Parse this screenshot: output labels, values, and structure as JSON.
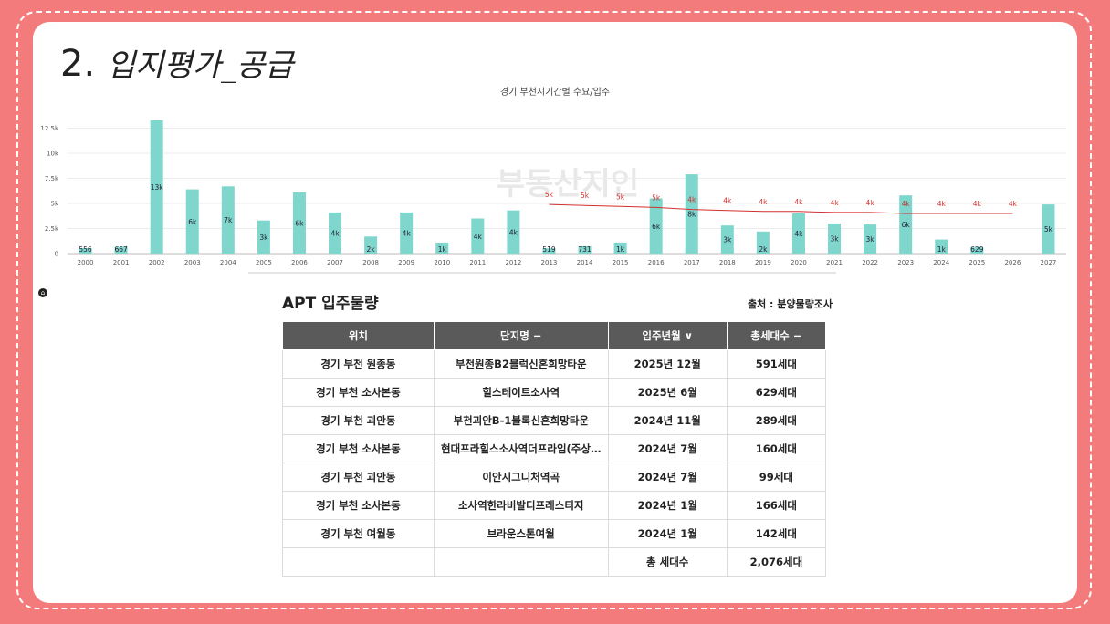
{
  "slide": {
    "number": "2.",
    "title": "입지평가_공급"
  },
  "watermark": "부동산지인",
  "chart_data": {
    "type": "bar",
    "title": "경기 부천시기간별 수요/입주",
    "categories": [
      "2000",
      "2001",
      "2002",
      "2003",
      "2004",
      "2005",
      "2006",
      "2007",
      "2008",
      "2009",
      "2010",
      "2011",
      "2012",
      "2013",
      "2014",
      "2015",
      "2016",
      "2017",
      "2018",
      "2019",
      "2020",
      "2021",
      "2022",
      "2023",
      "2024",
      "2025",
      "2026",
      "2027"
    ],
    "series": [
      {
        "values": [
          556,
          667,
          13300,
          6400,
          6700,
          3300,
          6100,
          4100,
          1700,
          4100,
          1100,
          3500,
          4300,
          519,
          731,
          1100,
          5500,
          7900,
          2800,
          2200,
          4000,
          3000,
          2900,
          5800,
          1400,
          629,
          0,
          4900
        ],
        "labels": [
          "556",
          "667",
          "13k",
          "6k",
          "7k",
          "3k",
          "6k",
          "4k",
          "2k",
          "4k",
          "1k",
          "4k",
          "4k",
          "519",
          "731",
          "1k",
          "6k",
          "8k",
          "3k",
          "2k",
          "4k",
          "3k",
          "3k",
          "6k",
          "1k",
          "629",
          "",
          "5k"
        ],
        "color": "#7fd6cc"
      },
      {
        "x": [
          "2013",
          "2014",
          "2015",
          "2016",
          "2017",
          "2018",
          "2019",
          "2020",
          "2021",
          "2022",
          "2023",
          "2024",
          "2025",
          "2026"
        ],
        "values": [
          4900,
          4800,
          4700,
          4600,
          4400,
          4300,
          4200,
          4200,
          4100,
          4100,
          4000,
          4000,
          4000,
          4000
        ],
        "labels": [
          "5k",
          "5k",
          "5k",
          "5k",
          "4k",
          "4k",
          "4k",
          "4k",
          "4k",
          "4k",
          "4k",
          "4k",
          "4k",
          "4k"
        ],
        "color": "#d32f2f"
      }
    ],
    "y_ticks": [
      "0",
      "2.5k",
      "5k",
      "7.5k",
      "10k",
      "12.5k"
    ],
    "ylim": [
      0,
      14000
    ],
    "grid": true
  },
  "apt": {
    "title": "APT 입주물량",
    "source": "출처 : 분양물량조사",
    "headers": [
      "위치",
      "단지명 −",
      "입주년월 ∨",
      "총세대수 −"
    ],
    "rows": [
      [
        "경기 부천 원종동",
        "부천원종B2블럭신혼희망타운",
        "2025년 12월",
        "591세대"
      ],
      [
        "경기 부천 소사본동",
        "힐스테이트소사역",
        "2025년 6월",
        "629세대"
      ],
      [
        "경기 부천 괴안동",
        "부천괴안B-1블록신혼희망타운",
        "2024년 11월",
        "289세대"
      ],
      [
        "경기 부천 소사본동",
        "현대프라힐스소사역더프라임(주상…",
        "2024년 7월",
        "160세대"
      ],
      [
        "경기 부천 괴안동",
        "이안시그니처역곡",
        "2024년 7월",
        "99세대"
      ],
      [
        "경기 부천 소사본동",
        "소사역한라비발디프레스티지",
        "2024년 1월",
        "166세대"
      ],
      [
        "경기 부천 여월동",
        "브라운스톤여월",
        "2024년 1월",
        "142세대"
      ]
    ],
    "total_label": "총 세대수",
    "total_value": "2,076세대"
  },
  "colors": {
    "background": "#f47b7b",
    "table_header": "#5a5a5a",
    "bar": "#7fd6cc",
    "line": "#d32f2f"
  }
}
